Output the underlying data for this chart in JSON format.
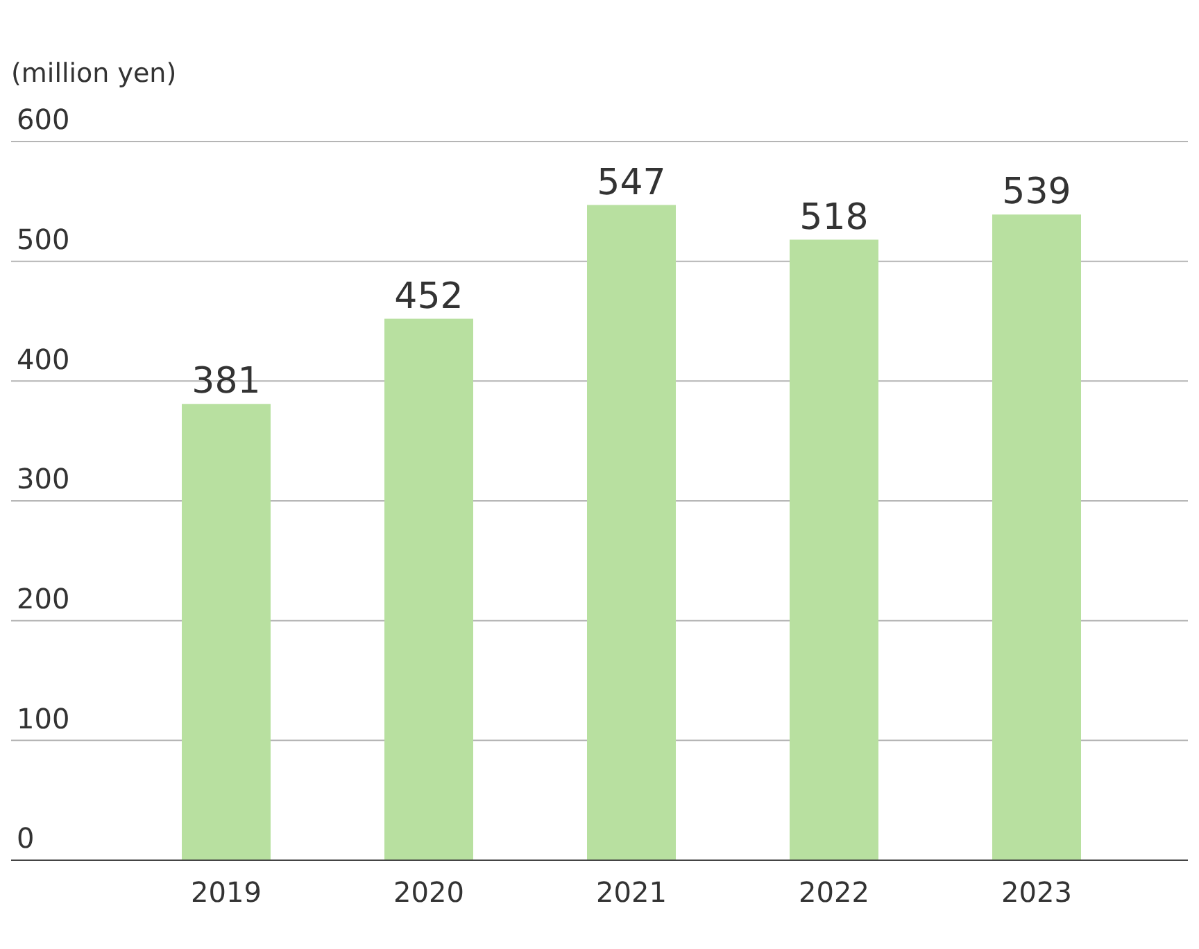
{
  "chart_data": {
    "type": "bar",
    "ylabel": "(million yen)",
    "categories": [
      "2019",
      "2020",
      "2021",
      "2022",
      "2023"
    ],
    "values": [
      381,
      452,
      547,
      518,
      539
    ],
    "color": "#b8e0a0",
    "ylim": [
      0,
      600
    ],
    "yticks": [
      0,
      100,
      200,
      300,
      400,
      500,
      600
    ],
    "grid": "y",
    "data_labels": true,
    "legend": false
  }
}
